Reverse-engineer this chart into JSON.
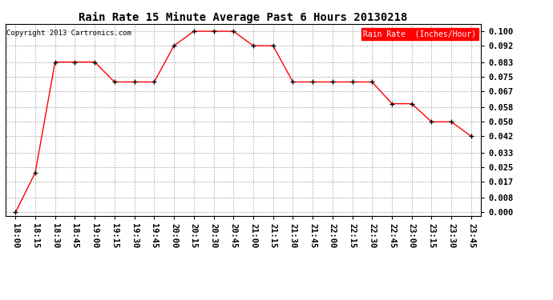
{
  "title": "Rain Rate 15 Minute Average Past 6 Hours 20130218",
  "copyright": "Copyright 2013 Cartronics.com",
  "legend_label": "Rain Rate  (Inches/Hour)",
  "x_labels": [
    "18:00",
    "18:15",
    "18:30",
    "18:45",
    "19:00",
    "19:15",
    "19:30",
    "19:45",
    "20:00",
    "20:15",
    "20:30",
    "20:45",
    "21:00",
    "21:15",
    "21:30",
    "21:45",
    "22:00",
    "22:15",
    "22:30",
    "22:45",
    "23:00",
    "23:15",
    "23:30",
    "23:45"
  ],
  "y_values": [
    0.0,
    0.022,
    0.083,
    0.083,
    0.083,
    0.072,
    0.072,
    0.072,
    0.092,
    0.1,
    0.1,
    0.1,
    0.092,
    0.092,
    0.072,
    0.072,
    0.072,
    0.072,
    0.072,
    0.06,
    0.06,
    0.05,
    0.05,
    0.042
  ],
  "y_ticks": [
    0.0,
    0.008,
    0.017,
    0.025,
    0.033,
    0.042,
    0.05,
    0.058,
    0.067,
    0.075,
    0.083,
    0.092,
    0.1
  ],
  "y_tick_labels": [
    "0.000",
    "0.008",
    "0.017",
    "0.025",
    "0.033",
    "0.042",
    "0.050",
    "0.058",
    "0.067",
    "0.075",
    "0.083",
    "0.092",
    "0.100"
  ],
  "line_color": "#FF0000",
  "marker": "+",
  "marker_color": "#000000",
  "bg_color": "#FFFFFF",
  "grid_color": "#AAAAAA",
  "title_fontsize": 10,
  "axis_fontsize": 7.5,
  "copyright_fontsize": 6.5,
  "legend_fontsize": 7
}
